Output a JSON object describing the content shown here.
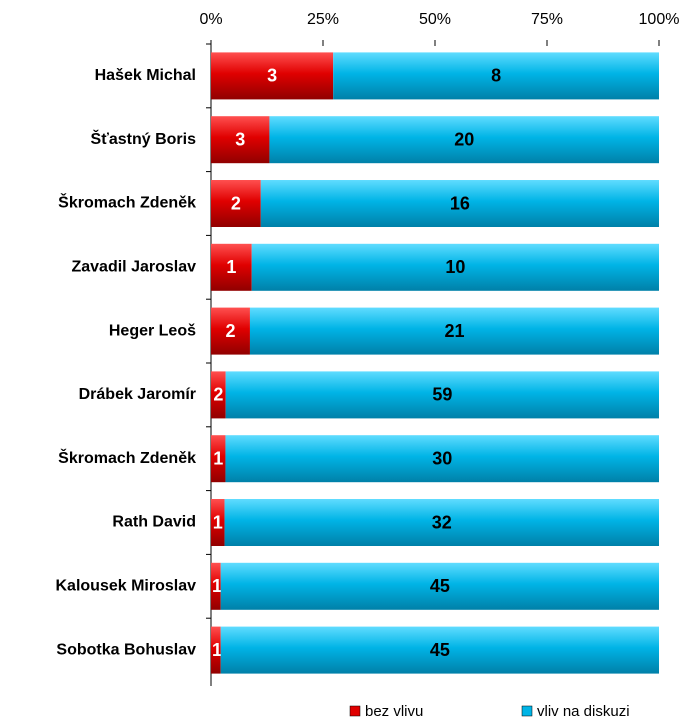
{
  "chart_data": {
    "type": "bar",
    "orientation": "horizontal",
    "stacked": "percent",
    "categories": [
      "Hašek Michal",
      "Šťastný Boris",
      "Škromach Zdeněk",
      "Zavadil Jaroslav",
      "Heger Leoš",
      "Drábek Jaromír",
      "Škromach Zdeněk",
      "Rath David",
      "Kalousek Miroslav",
      "Sobotka Bohuslav"
    ],
    "series": [
      {
        "name": "bez vlivu",
        "color": "#e00000",
        "label_color": "#ffffff",
        "values": [
          3,
          3,
          2,
          1,
          2,
          2,
          1,
          1,
          1,
          1
        ]
      },
      {
        "name": "vliv na diskuzi",
        "color": "#00b4e6",
        "label_color": "#000000",
        "values": [
          8,
          20,
          16,
          10,
          21,
          59,
          30,
          32,
          45,
          45
        ]
      }
    ],
    "xlim": [
      0,
      100
    ],
    "xticks": [
      {
        "value": 0,
        "label": "0%"
      },
      {
        "value": 25,
        "label": "25%"
      },
      {
        "value": 50,
        "label": "50%"
      },
      {
        "value": 75,
        "label": "75%"
      },
      {
        "value": 100,
        "label": "100%"
      }
    ],
    "legend": "bottom",
    "grid": false
  }
}
